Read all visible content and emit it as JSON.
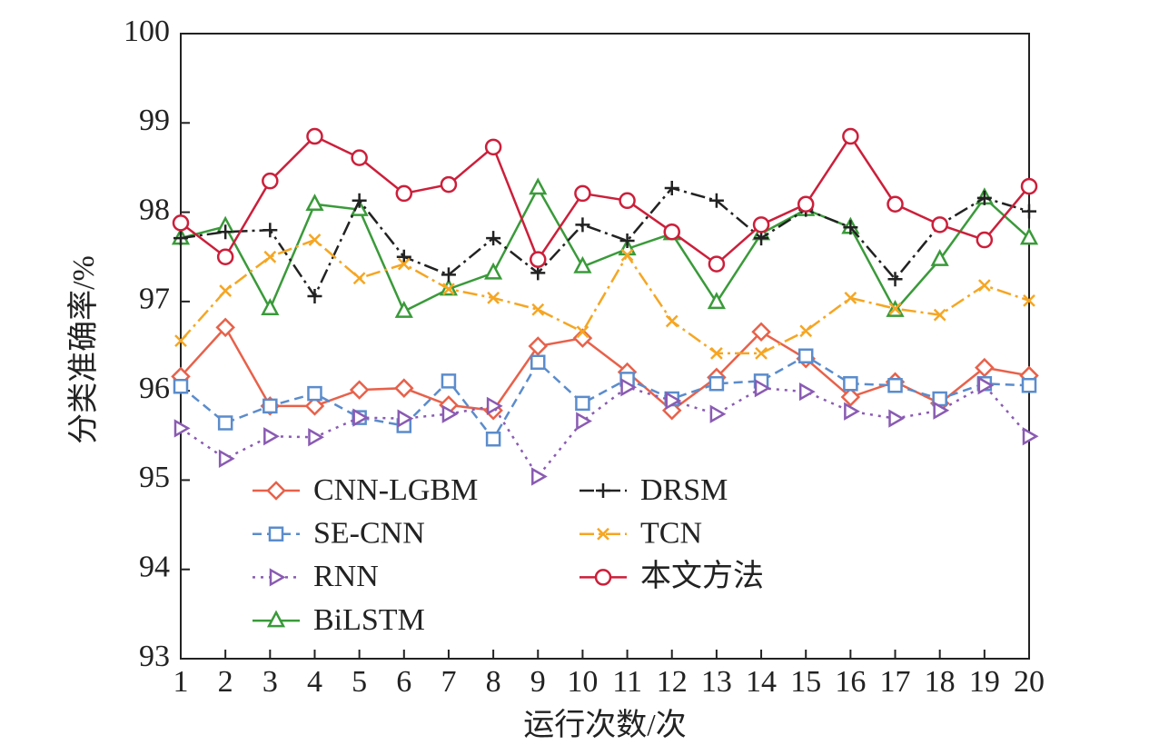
{
  "chart_data": {
    "type": "line",
    "xlabel": "运行次数/次",
    "ylabel": "分类准确率/%",
    "x": [
      1,
      2,
      3,
      4,
      5,
      6,
      7,
      8,
      9,
      10,
      11,
      12,
      13,
      14,
      15,
      16,
      17,
      18,
      19,
      20
    ],
    "xlim": [
      1,
      20
    ],
    "xticks": [
      1,
      2,
      3,
      4,
      5,
      6,
      7,
      8,
      9,
      10,
      11,
      12,
      13,
      14,
      15,
      16,
      17,
      18,
      19,
      20
    ],
    "ylim": [
      93,
      100
    ],
    "yticks": [
      93,
      94,
      95,
      96,
      97,
      98,
      99,
      100
    ],
    "series": [
      {
        "name": "CNN-LGBM",
        "color": "#e8614a",
        "values": [
          96.16,
          96.71,
          95.83,
          95.83,
          96.01,
          96.03,
          95.84,
          95.78,
          96.5,
          96.59,
          96.21,
          95.78,
          96.15,
          96.66,
          96.36,
          95.93,
          96.1,
          95.86,
          96.26,
          96.17
        ]
      },
      {
        "name": "SE-CNN",
        "color": "#5b8ccc",
        "values": [
          96.05,
          95.64,
          95.83,
          95.97,
          95.7,
          95.61,
          96.11,
          95.46,
          96.32,
          95.86,
          96.13,
          95.91,
          96.08,
          96.11,
          96.39,
          96.08,
          96.06,
          95.91,
          96.08,
          96.06
        ]
      },
      {
        "name": "RNN",
        "color": "#8a5bb3",
        "values": [
          95.58,
          95.24,
          95.49,
          95.48,
          95.7,
          95.69,
          95.74,
          95.83,
          95.04,
          95.66,
          96.04,
          95.89,
          95.74,
          96.03,
          95.99,
          95.77,
          95.69,
          95.78,
          96.06,
          95.49
        ]
      },
      {
        "name": "BiLSTM",
        "color": "#3a9a3a",
        "values": [
          97.71,
          97.84,
          96.92,
          98.09,
          98.03,
          96.89,
          97.14,
          97.32,
          98.27,
          97.39,
          97.59,
          97.76,
          96.99,
          97.76,
          98.03,
          97.83,
          96.9,
          97.47,
          98.16,
          97.71
        ]
      },
      {
        "name": "DRSM",
        "color": "#222222",
        "values": [
          97.71,
          97.78,
          97.8,
          97.06,
          98.13,
          97.5,
          97.3,
          97.71,
          97.32,
          97.86,
          97.68,
          98.27,
          98.13,
          97.71,
          98.03,
          97.83,
          97.25,
          97.86,
          98.16,
          98.01
        ]
      },
      {
        "name": "TCN",
        "color": "#f5a623",
        "values": [
          96.56,
          97.12,
          97.5,
          97.69,
          97.26,
          97.42,
          97.14,
          97.04,
          96.91,
          96.66,
          97.52,
          96.78,
          96.42,
          96.42,
          96.67,
          97.04,
          96.92,
          96.85,
          97.18,
          97.01
        ]
      },
      {
        "name": "本文方法",
        "color": "#cc1f3a",
        "values": [
          97.88,
          97.5,
          98.35,
          98.85,
          98.61,
          98.21,
          98.31,
          98.73,
          97.47,
          98.21,
          98.13,
          97.78,
          97.42,
          97.86,
          98.09,
          98.85,
          98.09,
          97.86,
          97.69,
          98.29
        ]
      }
    ]
  }
}
